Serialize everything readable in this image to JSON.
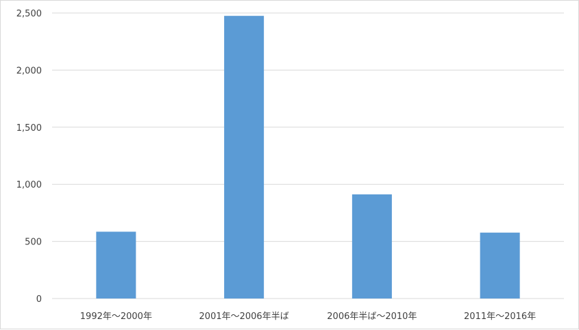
{
  "chart_data": {
    "type": "bar",
    "categories": [
      "1992年～2000年",
      "2001年～2006年半ば",
      "2006年半ば～2010年",
      "2011年～2016年"
    ],
    "values": [
      585,
      2475,
      912,
      577
    ],
    "ylim": [
      0,
      2500
    ],
    "yticks": [
      0,
      500,
      1000,
      1500,
      2000,
      2500
    ],
    "ytick_labels": [
      "0",
      "500",
      "1,000",
      "1,500",
      "2,000",
      "2,500"
    ],
    "bar_color": "#5b9bd5",
    "gridline_color": "#d9d9d9",
    "grid": true,
    "legend": "none"
  }
}
